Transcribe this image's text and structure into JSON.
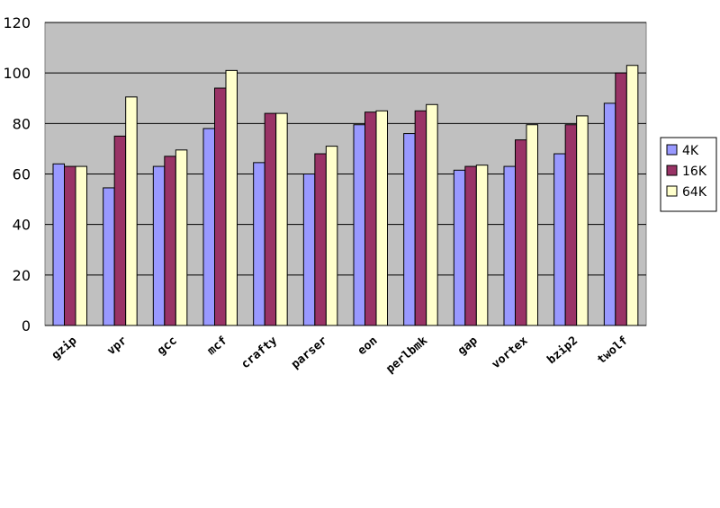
{
  "chart_data": {
    "type": "bar",
    "title": "",
    "xlabel": "",
    "ylabel": "",
    "ylim": [
      0,
      120
    ],
    "yticks": [
      0,
      20,
      40,
      60,
      80,
      100,
      120
    ],
    "grid": true,
    "plot_background": "#c0c0c0",
    "legend_position": "right",
    "categories": [
      "gzip",
      "vpr",
      "gcc",
      "mcf",
      "crafty",
      "parser",
      "eon",
      "perlbmk",
      "gap",
      "vortex",
      "bzip2",
      "twolf"
    ],
    "series": [
      {
        "name": "4K",
        "color": "#9999ff",
        "values": [
          64,
          54.5,
          63,
          78,
          64.5,
          60,
          79.5,
          76,
          61.5,
          63,
          68,
          88
        ]
      },
      {
        "name": "16K",
        "color": "#993366",
        "values": [
          63,
          75,
          67,
          94,
          84,
          68,
          84.5,
          85,
          63,
          73.5,
          79.5,
          100
        ]
      },
      {
        "name": "64K",
        "color": "#ffffcc",
        "values": [
          63,
          90.5,
          69.5,
          101,
          84,
          71,
          85,
          87.5,
          63.5,
          79.5,
          83,
          103
        ]
      }
    ]
  }
}
